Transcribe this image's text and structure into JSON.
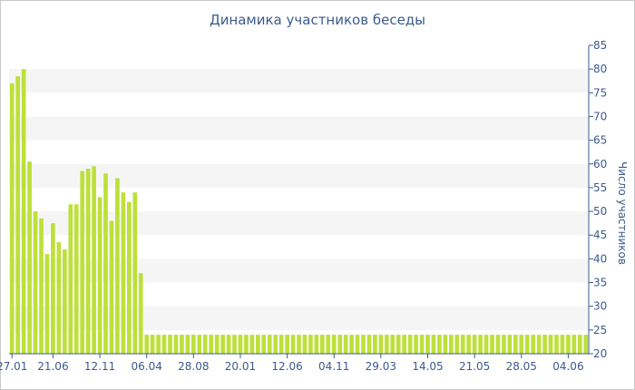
{
  "chart_data": {
    "type": "bar",
    "title": "Динамика участников беседы",
    "ylabel": "Число участников",
    "ylim": [
      20,
      85
    ],
    "yticks": [
      20,
      25,
      30,
      35,
      40,
      45,
      50,
      55,
      60,
      65,
      70,
      75,
      80,
      85
    ],
    "x_tick_labels": [
      "27.01",
      "21.06",
      "12.11",
      "06.04",
      "28.08",
      "20.01",
      "12.06",
      "04.11",
      "29.03",
      "14.05",
      "21.05",
      "28.05",
      "04.06"
    ],
    "x_tick_positions": [
      0,
      7,
      15,
      23,
      31,
      39,
      47,
      55,
      63,
      71,
      79,
      87,
      95
    ],
    "bar_color": "#bde03a",
    "values": [
      77,
      78.5,
      80,
      60.5,
      50,
      48.5,
      41,
      47.5,
      43.5,
      42,
      51.5,
      51.5,
      58.5,
      59,
      59.5,
      53,
      58,
      48,
      57,
      54,
      52,
      54,
      37,
      24,
      24,
      24,
      24,
      24,
      24,
      24,
      24,
      24,
      24,
      24,
      24,
      24,
      24,
      24,
      24,
      24,
      24,
      24,
      24,
      24,
      24,
      24,
      24,
      24,
      24,
      24,
      24,
      24,
      24,
      24,
      24,
      24,
      24,
      24,
      24,
      24,
      24,
      24,
      24,
      24,
      24,
      24,
      24,
      24,
      24,
      24,
      24,
      24,
      24,
      24,
      24,
      24,
      24,
      24,
      24,
      24,
      24,
      24,
      24,
      24,
      24,
      24,
      24,
      24,
      24,
      24,
      24,
      24,
      24,
      24,
      24,
      24,
      24,
      24,
      24
    ]
  }
}
